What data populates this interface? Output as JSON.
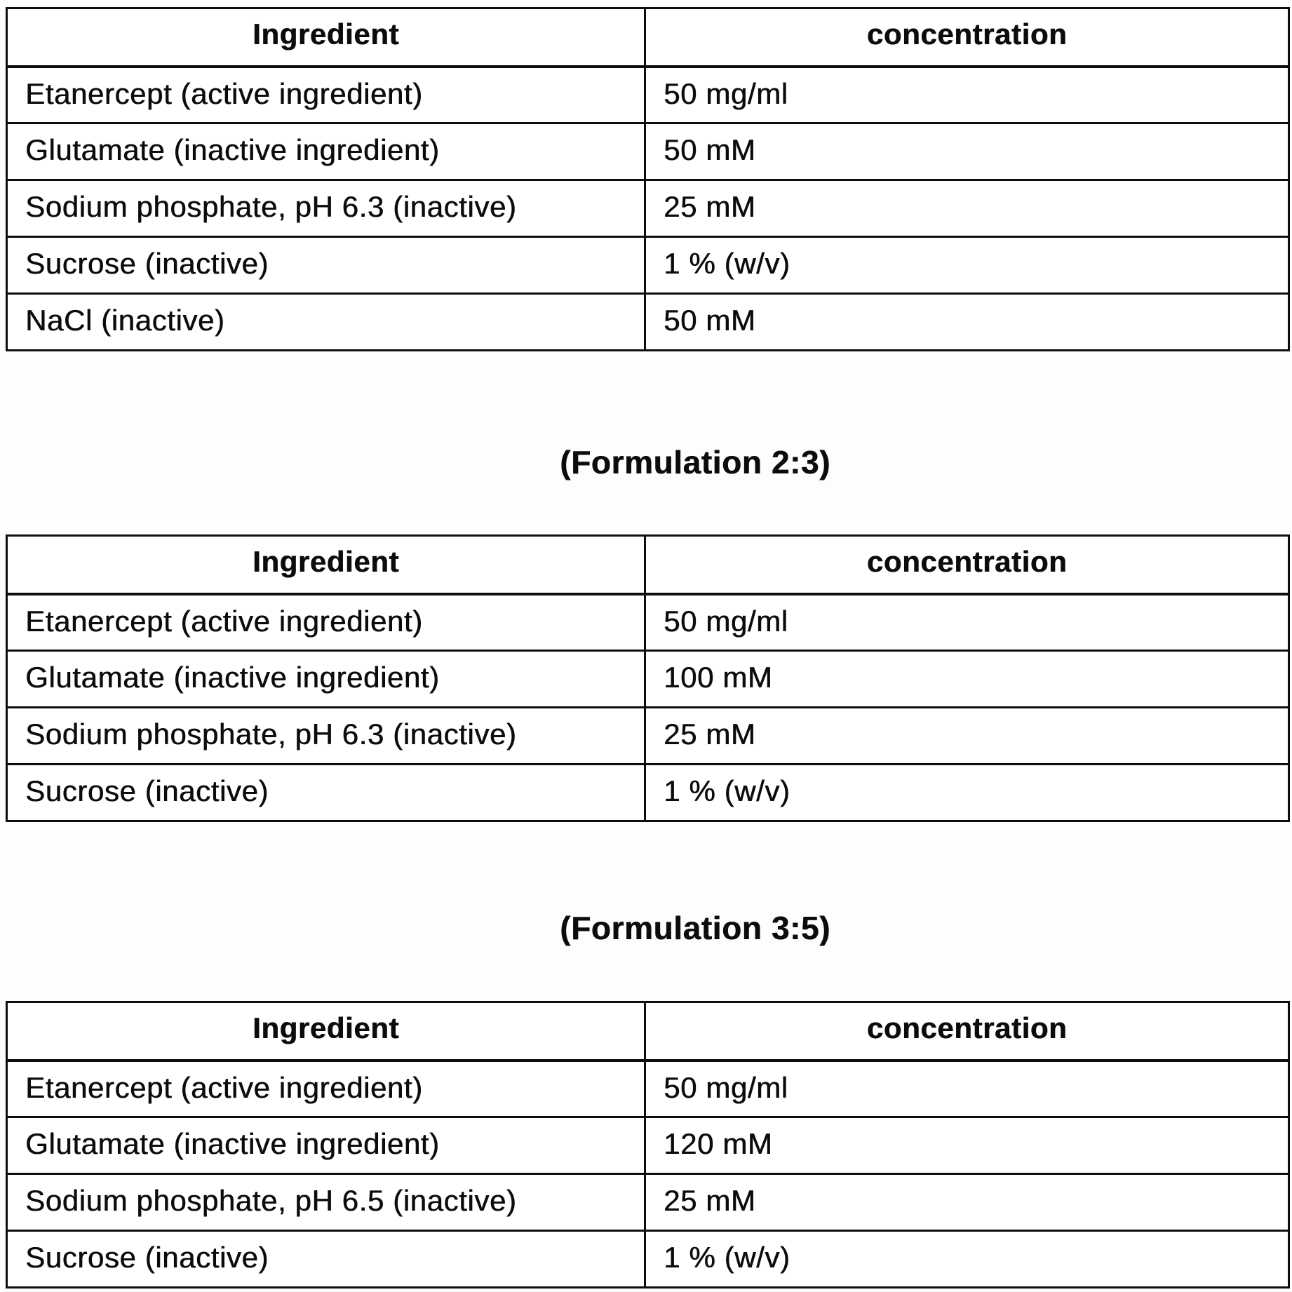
{
  "document": {
    "headings": [
      {
        "label": "(Formulation 2:3)"
      },
      {
        "label": "(Formulation 3:5)"
      }
    ],
    "tables": [
      {
        "headers": [
          "Ingredient",
          "concentration"
        ],
        "rows": [
          [
            "Etanercept (active ingredient)",
            "50 mg/ml"
          ],
          [
            "Glutamate (inactive ingredient)",
            "50 mM"
          ],
          [
            "Sodium phosphate, pH 6.3 (inactive)",
            "25 mM"
          ],
          [
            "Sucrose (inactive)",
            "1 % (w/v)"
          ],
          [
            "NaCl (inactive)",
            "50 mM"
          ]
        ]
      },
      {
        "headers": [
          "Ingredient",
          "concentration"
        ],
        "rows": [
          [
            "Etanercept (active ingredient)",
            "50 mg/ml"
          ],
          [
            "Glutamate (inactive ingredient)",
            "100 mM"
          ],
          [
            "Sodium phosphate, pH 6.3 (inactive)",
            "25 mM"
          ],
          [
            "Sucrose (inactive)",
            "1 % (w/v)"
          ]
        ]
      },
      {
        "headers": [
          "Ingredient",
          "concentration"
        ],
        "rows": [
          [
            "Etanercept (active ingredient)",
            "50 mg/ml"
          ],
          [
            "Glutamate (inactive ingredient)",
            "120 mM"
          ],
          [
            "Sodium phosphate, pH 6.5 (inactive)",
            "25 mM"
          ],
          [
            "Sucrose (inactive)",
            "1 % (w/v)"
          ]
        ]
      }
    ]
  }
}
